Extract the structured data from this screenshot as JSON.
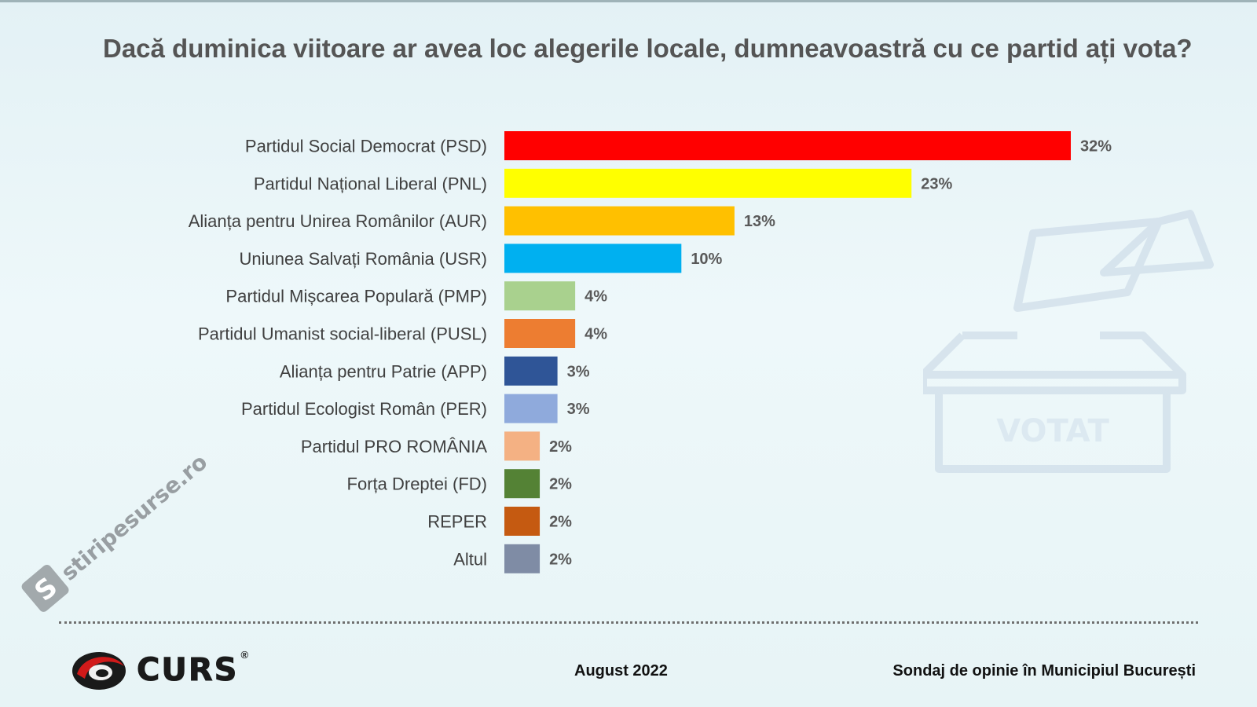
{
  "header": {
    "title": "Dacă duminica viitoare ar avea loc alegerile locale, dumneavoastră cu ce partid ați vota?"
  },
  "chart_data": {
    "type": "bar",
    "orientation": "horizontal",
    "title": "Dacă duminica viitoare ar avea loc alegerile locale, dumneavoastră cu ce partid ați vota?",
    "categories": [
      "Partidul Social Democrat (PSD)",
      "Partidul Național Liberal (PNL)",
      "Alianța pentru Unirea Românilor (AUR)",
      "Uniunea Salvați România (USR)",
      "Partidul Mișcarea Populară (PMP)",
      "Partidul Umanist social-liberal (PUSL)",
      "Alianța pentru Patrie (APP)",
      "Partidul Ecologist Român (PER)",
      "Partidul PRO ROMÂNIA",
      "Forța Dreptei (FD)",
      "REPER",
      "Altul"
    ],
    "values": [
      32,
      23,
      13,
      10,
      4,
      4,
      3,
      3,
      2,
      2,
      2,
      2
    ],
    "value_labels": [
      "32%",
      "23%",
      "13%",
      "10%",
      "4%",
      "4%",
      "3%",
      "3%",
      "2%",
      "2%",
      "2%",
      "2%"
    ],
    "colors": [
      "#ff0000",
      "#ffff00",
      "#ffc000",
      "#00b0f0",
      "#a9d18e",
      "#ed7d31",
      "#2f5597",
      "#8faadc",
      "#f4b183",
      "#548235",
      "#c55a11",
      "#7f8ca5"
    ],
    "unit": "%",
    "xlim": [
      0,
      32
    ],
    "grid": false,
    "legend": "none"
  },
  "watermark": {
    "ballot_text": "VOTAT",
    "site": "stiripesurse.ro",
    "site_initial": "S"
  },
  "footer": {
    "brand": "CURS",
    "registered_mark": "®",
    "date": "August 2022",
    "source": "Sondaj de opinie în Municipiul București"
  }
}
